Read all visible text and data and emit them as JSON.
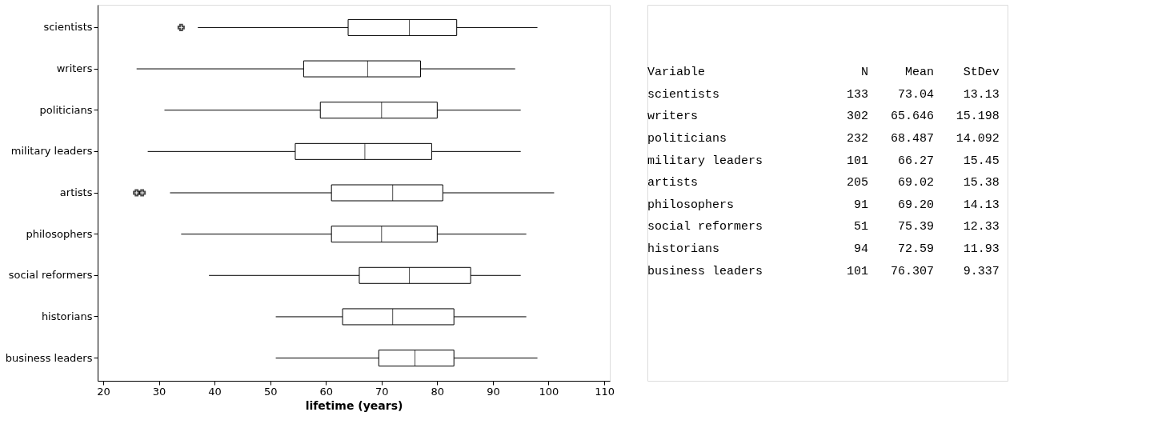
{
  "chart_data": {
    "type": "box",
    "orientation": "horizontal",
    "xlabel": "lifetime (years)",
    "categories": [
      "scientists",
      "writers",
      "politicians",
      "military leaders",
      "artists",
      "philosophers",
      "social reformers",
      "historians",
      "business leaders"
    ],
    "boxes": [
      {
        "low": 37,
        "q1": 64,
        "median": 75,
        "q3": 83.5,
        "high": 98,
        "outliers": [
          34
        ]
      },
      {
        "low": 26,
        "q1": 56,
        "median": 67.5,
        "q3": 77,
        "high": 94
      },
      {
        "low": 31,
        "q1": 59,
        "median": 70,
        "q3": 80,
        "high": 95
      },
      {
        "low": 28,
        "q1": 54.5,
        "median": 67,
        "q3": 79,
        "high": 95
      },
      {
        "low": 32,
        "q1": 61,
        "median": 72,
        "q3": 81,
        "high": 101,
        "outliers": [
          26,
          27
        ]
      },
      {
        "low": 34,
        "q1": 61,
        "median": 70,
        "q3": 80,
        "high": 96
      },
      {
        "low": 39,
        "q1": 66,
        "median": 75,
        "q3": 86,
        "high": 95
      },
      {
        "low": 51,
        "q1": 63,
        "median": 72,
        "q3": 83,
        "high": 96
      },
      {
        "low": 51,
        "q1": 69.5,
        "median": 76,
        "q3": 83,
        "high": 98
      }
    ],
    "xlim": [
      19,
      111
    ],
    "xticks": [
      20,
      30,
      40,
      50,
      60,
      70,
      80,
      90,
      100,
      110
    ],
    "grid": false,
    "annotations": [
      "Variable  N  Mean  StDev",
      "scientists  133  73.04  13.13",
      "writers  302  65.646  15.198",
      "politicians  232  68.487  14.092",
      "military leaders  101  66.27  15.45",
      "artists  205  69.02  15.38",
      "philosophers  91  69.20  14.13",
      "social reformers  51  75.39  12.33",
      "historians  94  72.59  11.93",
      "business leaders  101  76.307  9.337"
    ]
  }
}
